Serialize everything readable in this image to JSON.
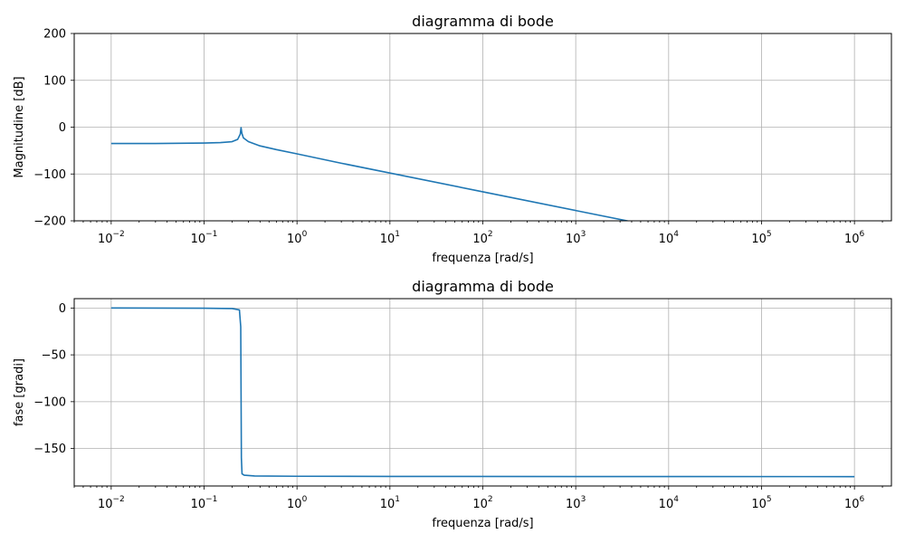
{
  "chart_data": [
    {
      "type": "line",
      "title": "diagramma di bode",
      "xlabel": "frequenza [rad/s]",
      "ylabel": "Magnitudine [dB]",
      "xscale": "log",
      "xlim": [
        0.004,
        2500000
      ],
      "ylim": [
        -200,
        200
      ],
      "grid": true,
      "x_ticks": [
        {
          "value": 0.01,
          "base": "10",
          "exp": "−2"
        },
        {
          "value": 0.1,
          "base": "10",
          "exp": "−1"
        },
        {
          "value": 1,
          "base": "10",
          "exp": "0"
        },
        {
          "value": 10,
          "base": "10",
          "exp": "1"
        },
        {
          "value": 100,
          "base": "10",
          "exp": "2"
        },
        {
          "value": 1000,
          "base": "10",
          "exp": "3"
        },
        {
          "value": 10000,
          "base": "10",
          "exp": "4"
        },
        {
          "value": 100000,
          "base": "10",
          "exp": "5"
        },
        {
          "value": 1000000,
          "base": "10",
          "exp": "6"
        }
      ],
      "y_ticks": [
        {
          "value": 200,
          "label": "200"
        },
        {
          "value": 100,
          "label": "100"
        },
        {
          "value": 0,
          "label": "0"
        },
        {
          "value": -100,
          "label": "−100"
        },
        {
          "value": -200,
          "label": "−200"
        }
      ],
      "series": [
        {
          "x": [
            0.01,
            0.03,
            0.1,
            0.15,
            0.2,
            0.23,
            0.245,
            0.25,
            0.255,
            0.265,
            0.3,
            0.4,
            0.6,
            1,
            3,
            10,
            100,
            1000,
            4000
          ],
          "y": [
            -35,
            -35,
            -34,
            -33,
            -31,
            -26,
            -15,
            -1,
            -13,
            -23,
            -31,
            -40,
            -48,
            -57,
            -77,
            -98,
            -138,
            -178,
            -202
          ]
        }
      ]
    },
    {
      "type": "line",
      "title": "diagramma di bode",
      "xlabel": "frequenza [rad/s]",
      "ylabel": "fase [gradi]",
      "xscale": "log",
      "xlim": [
        0.004,
        2500000
      ],
      "ylim": [
        -190,
        10
      ],
      "grid": true,
      "x_ticks": [
        {
          "value": 0.01,
          "base": "10",
          "exp": "−2"
        },
        {
          "value": 0.1,
          "base": "10",
          "exp": "−1"
        },
        {
          "value": 1,
          "base": "10",
          "exp": "0"
        },
        {
          "value": 10,
          "base": "10",
          "exp": "1"
        },
        {
          "value": 100,
          "base": "10",
          "exp": "2"
        },
        {
          "value": 1000,
          "base": "10",
          "exp": "3"
        },
        {
          "value": 10000,
          "base": "10",
          "exp": "4"
        },
        {
          "value": 100000,
          "base": "10",
          "exp": "5"
        },
        {
          "value": 1000000,
          "base": "10",
          "exp": "6"
        }
      ],
      "y_ticks": [
        {
          "value": 0,
          "label": "0"
        },
        {
          "value": -50,
          "label": "−50"
        },
        {
          "value": -100,
          "label": "−100"
        },
        {
          "value": -150,
          "label": "−150"
        }
      ],
      "series": [
        {
          "x": [
            0.01,
            0.1,
            0.2,
            0.24,
            0.248,
            0.25,
            0.252,
            0.256,
            0.27,
            0.35,
            1,
            10,
            1000000
          ],
          "y": [
            0,
            -0.2,
            -0.6,
            -2,
            -20,
            -90,
            -160,
            -177,
            -178.5,
            -179.3,
            -179.6,
            -179.8,
            -180
          ]
        }
      ]
    }
  ]
}
